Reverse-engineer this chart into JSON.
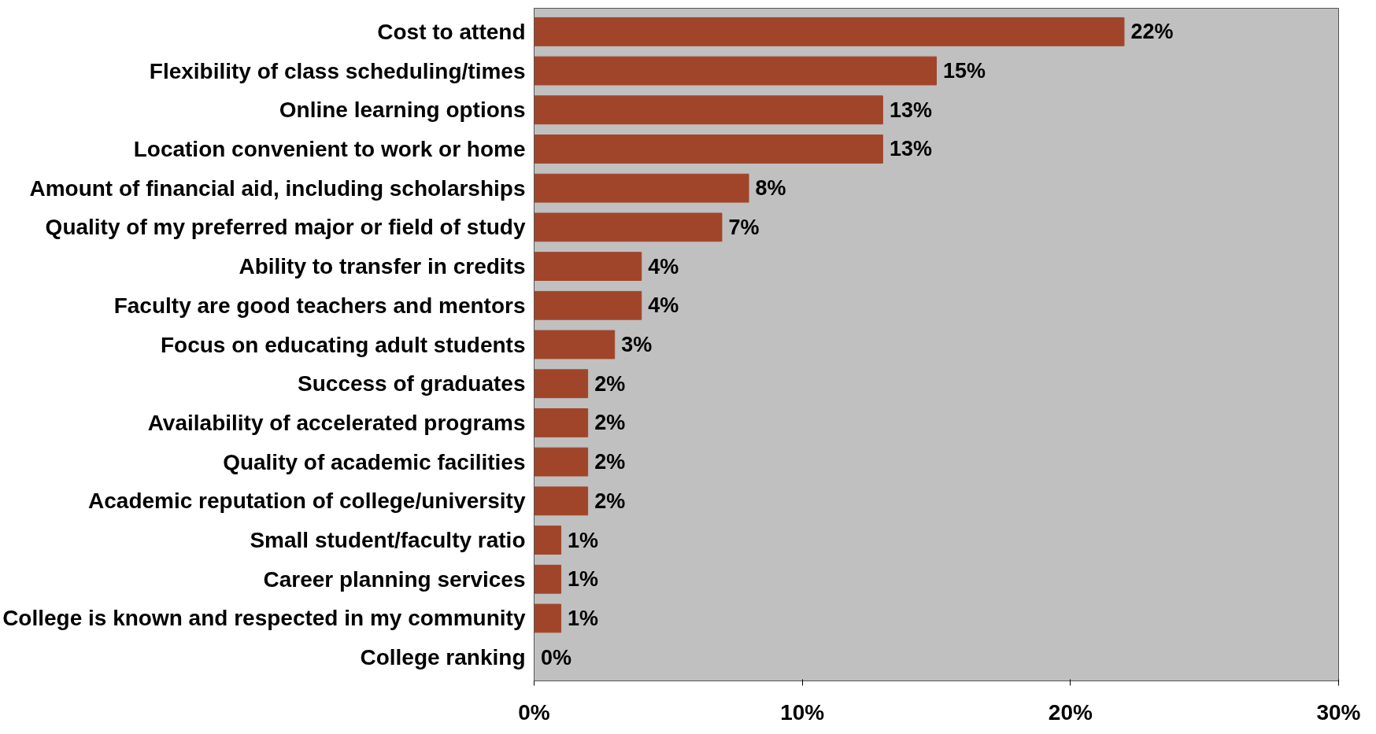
{
  "chart_data": {
    "type": "bar",
    "orientation": "horizontal",
    "categories": [
      "Cost to attend",
      "Flexibility of class scheduling/times",
      "Online learning options",
      "Location convenient to work or home",
      "Amount of financial aid, including scholarships",
      "Quality of my preferred major or field of study",
      "Ability to transfer in credits",
      "Faculty are good teachers and mentors",
      "Focus on educating adult students",
      "Success of graduates",
      "Availability of accelerated programs",
      "Quality of academic facilities",
      "Academic reputation of college/university",
      "Small student/faculty ratio",
      "Career planning services",
      "College is known and respected in my community",
      "College ranking"
    ],
    "values": [
      22,
      15,
      13,
      13,
      8,
      7,
      4,
      4,
      3,
      2,
      2,
      2,
      2,
      1,
      1,
      1,
      0
    ],
    "value_labels": [
      "22%",
      "15%",
      "13%",
      "13%",
      "8%",
      "7%",
      "4%",
      "4%",
      "3%",
      "2%",
      "2%",
      "2%",
      "2%",
      "1%",
      "1%",
      "1%",
      "0%"
    ],
    "color": "#a0452a",
    "xlim": [
      0,
      30
    ],
    "xticks": [
      {
        "value": 0,
        "label": "0%"
      },
      {
        "value": 10,
        "label": "10%"
      },
      {
        "value": 20,
        "label": "20%"
      },
      {
        "value": 30,
        "label": "30%"
      }
    ],
    "grid": false
  }
}
